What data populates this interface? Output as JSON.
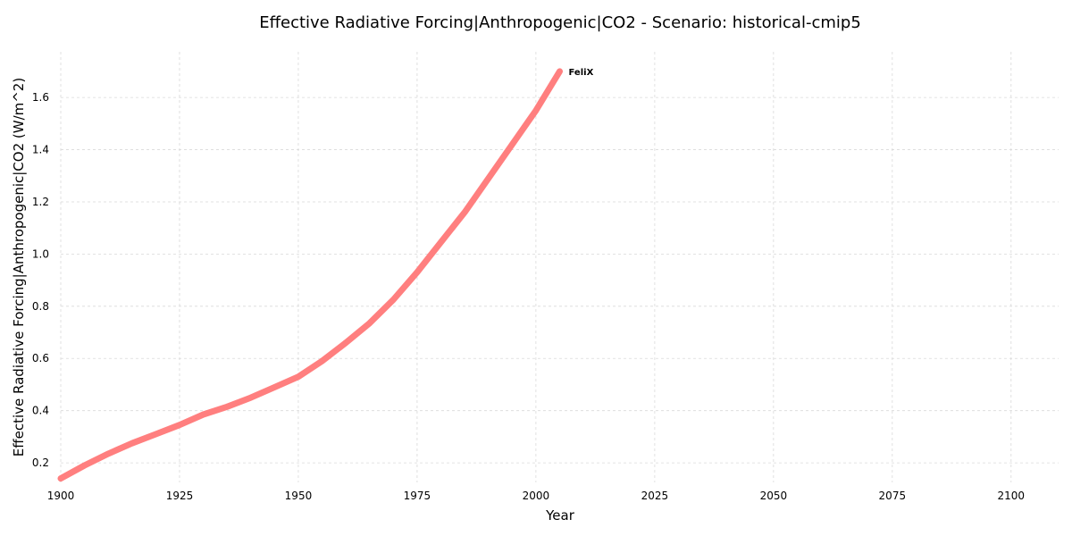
{
  "chart_data": {
    "type": "line",
    "title": "Effective Radiative Forcing|Anthropogenic|CO2 - Scenario: historical-cmip5",
    "xlabel": "Year",
    "ylabel": "Effective Radiative Forcing|Anthropogenic|CO2 (W/m^2)",
    "xlim": [
      1900,
      2110
    ],
    "ylim": [
      0.125,
      1.775
    ],
    "x_ticks": [
      1900,
      1925,
      1950,
      1975,
      2000,
      2025,
      2050,
      2075,
      2100
    ],
    "y_ticks": [
      0.2,
      0.4,
      0.6,
      0.8,
      1.0,
      1.2,
      1.4,
      1.6
    ],
    "y_tick_labels": [
      "0.2",
      "0.4",
      "0.6",
      "0.8",
      "1.0",
      "1.2",
      "1.4",
      "1.6"
    ],
    "grid": true,
    "series": [
      {
        "name": "FeliX",
        "color": "#ff7f7f",
        "x": [
          1900,
          1905,
          1910,
          1915,
          1920,
          1925,
          1930,
          1935,
          1940,
          1945,
          1950,
          1955,
          1960,
          1965,
          1970,
          1975,
          1980,
          1985,
          1990,
          1995,
          2000,
          2005
        ],
        "y": [
          0.14,
          0.19,
          0.235,
          0.275,
          0.31,
          0.345,
          0.385,
          0.415,
          0.45,
          0.49,
          0.53,
          0.59,
          0.66,
          0.735,
          0.825,
          0.93,
          1.045,
          1.16,
          1.29,
          1.42,
          1.55,
          1.7
        ]
      }
    ]
  }
}
